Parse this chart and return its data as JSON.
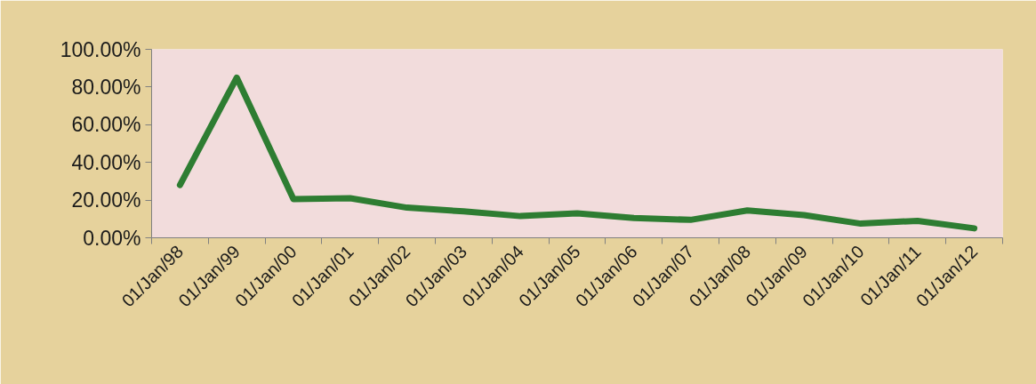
{
  "chart_data": {
    "type": "line",
    "categories": [
      "01/Jan/98",
      "01/Jan/99",
      "01/Jan/00",
      "01/Jan/01",
      "01/Jan/02",
      "01/Jan/03",
      "01/Jan/04",
      "01/Jan/05",
      "01/Jan/06",
      "01/Jan/07",
      "01/Jan/08",
      "01/Jan/09",
      "01/Jan/10",
      "01/Jan/11",
      "01/Jan/12"
    ],
    "series": [
      {
        "color": "#2e7d32",
        "values": [
          28,
          85,
          20.5,
          21,
          16,
          14,
          11.5,
          13,
          10.5,
          9.5,
          14.5,
          12,
          7.5,
          9,
          5
        ]
      }
    ],
    "ylim": [
      0,
      100
    ],
    "yticks": [
      {
        "value": 0,
        "label": "0.00%"
      },
      {
        "value": 20,
        "label": "20.00%"
      },
      {
        "value": 40,
        "label": "40.00%"
      },
      {
        "value": 60,
        "label": "60.00%"
      },
      {
        "value": 80,
        "label": "80.00%"
      },
      {
        "value": 100,
        "label": "100.00%"
      }
    ],
    "grid": false
  }
}
